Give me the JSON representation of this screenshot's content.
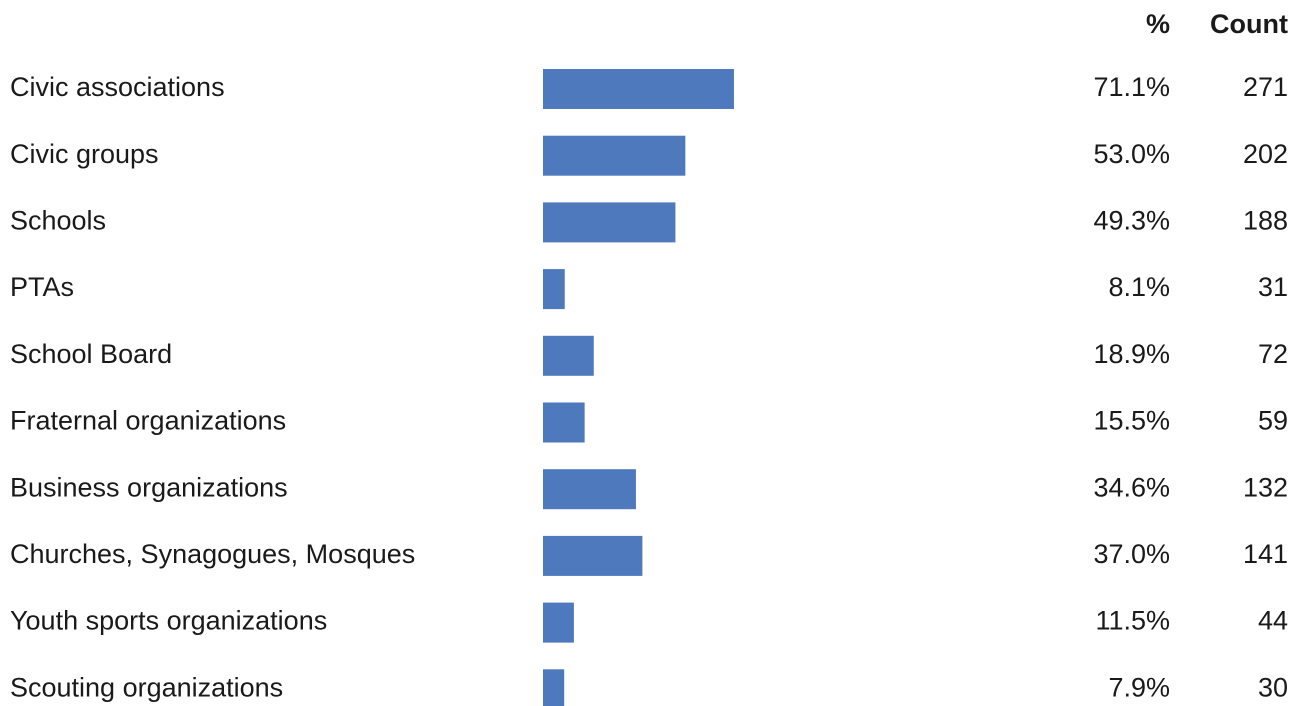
{
  "chart_data": {
    "type": "bar",
    "columns": [
      "%",
      "Count"
    ],
    "categories": [
      "Civic associations",
      "Civic groups",
      "Schools",
      "PTAs",
      "School Board",
      "Fraternal organizations",
      "Business organizations",
      "Churches, Synagogues, Mosques",
      "Youth sports organizations",
      "Scouting organizations"
    ],
    "values": [
      71.1,
      53.0,
      49.3,
      8.1,
      18.9,
      15.5,
      34.6,
      37.0,
      11.5,
      7.9
    ],
    "value_labels": [
      "71.1%",
      "53.0%",
      "49.3%",
      "8.1%",
      "18.9%",
      "15.5%",
      "34.6%",
      "37.0%",
      "11.5%",
      "7.9%"
    ],
    "counts": [
      271,
      202,
      188,
      31,
      72,
      59,
      132,
      141,
      44,
      30
    ],
    "color": "#4e79bd"
  }
}
